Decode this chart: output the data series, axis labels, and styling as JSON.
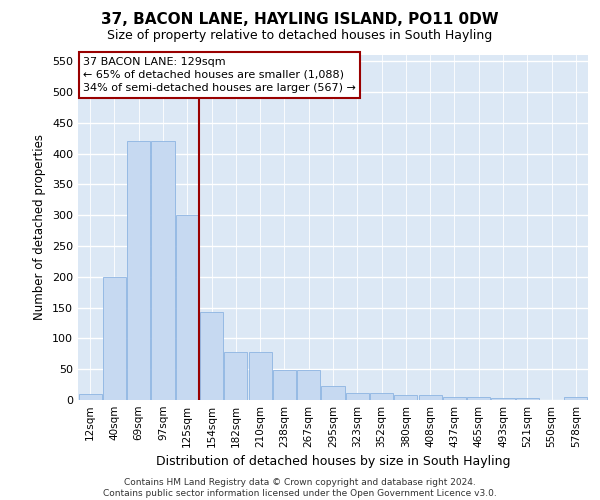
{
  "title": "37, BACON LANE, HAYLING ISLAND, PO11 0DW",
  "subtitle": "Size of property relative to detached houses in South Hayling",
  "xlabel": "Distribution of detached houses by size in South Hayling",
  "ylabel": "Number of detached properties",
  "categories": [
    "12sqm",
    "40sqm",
    "69sqm",
    "97sqm",
    "125sqm",
    "154sqm",
    "182sqm",
    "210sqm",
    "238sqm",
    "267sqm",
    "295sqm",
    "323sqm",
    "352sqm",
    "380sqm",
    "408sqm",
    "437sqm",
    "465sqm",
    "493sqm",
    "521sqm",
    "550sqm",
    "578sqm"
  ],
  "values": [
    10,
    200,
    420,
    420,
    300,
    143,
    78,
    78,
    48,
    48,
    22,
    12,
    12,
    8,
    8,
    5,
    5,
    3,
    3,
    0,
    5
  ],
  "bar_color": "#c6d9f1",
  "bar_edge_color": "#8db4e2",
  "ref_line_index": 4,
  "ref_line_color": "#990000",
  "annotation_line1": "37 BACON LANE: 129sqm",
  "annotation_line2": "← 65% of detached houses are smaller (1,088)",
  "annotation_line3": "34% of semi-detached houses are larger (567) →",
  "ylim_max": 560,
  "yticks": [
    0,
    50,
    100,
    150,
    200,
    250,
    300,
    350,
    400,
    450,
    500,
    550
  ],
  "grid_color": "#ffffff",
  "bg_color": "#dce8f5",
  "footer_line1": "Contains HM Land Registry data © Crown copyright and database right 2024.",
  "footer_line2": "Contains public sector information licensed under the Open Government Licence v3.0."
}
